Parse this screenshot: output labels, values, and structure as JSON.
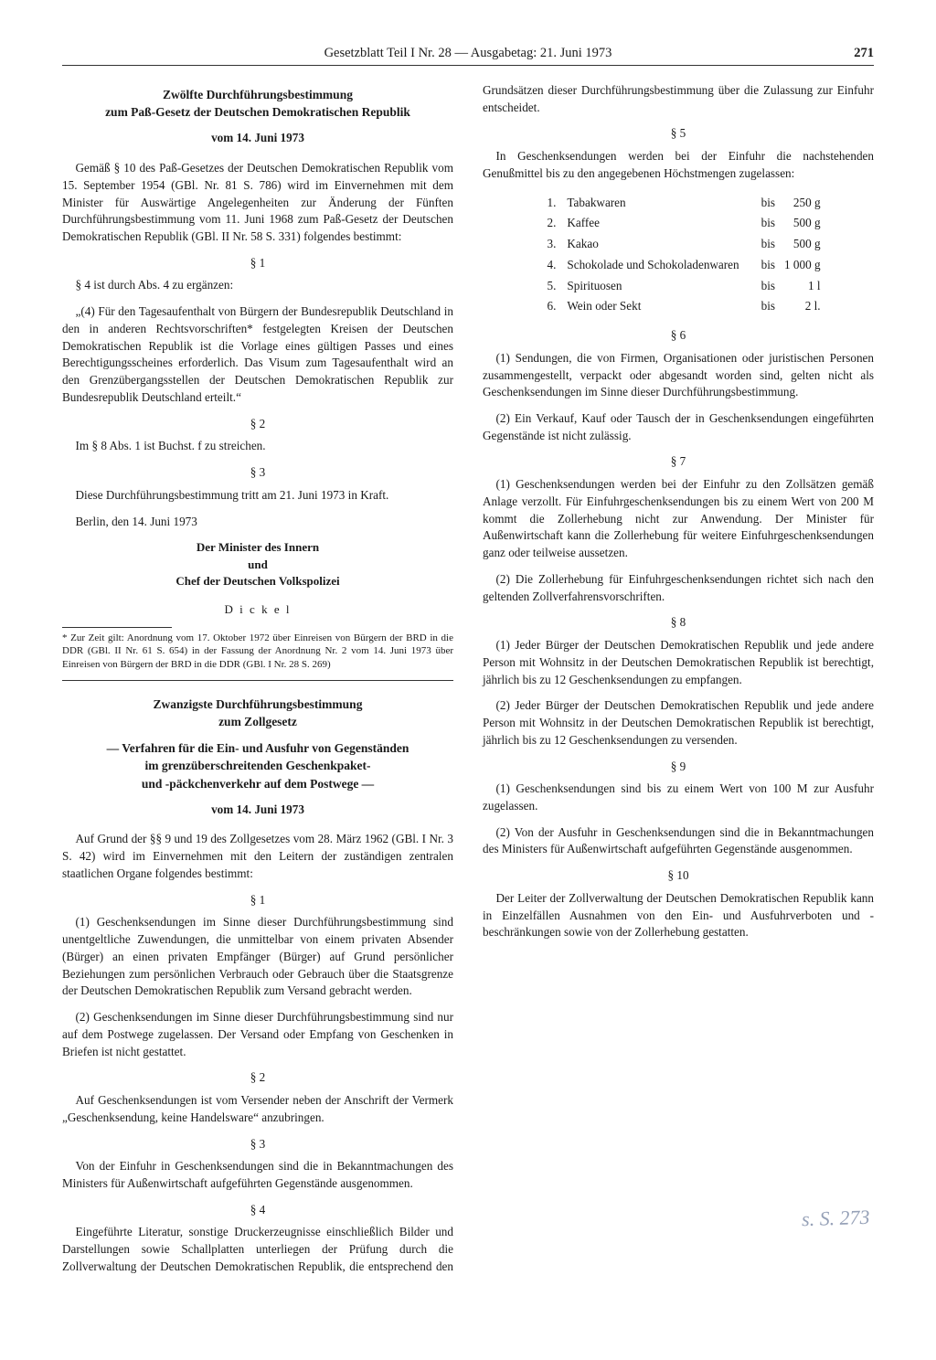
{
  "header": {
    "center": "Gesetzblatt Teil I Nr. 28 — Ausgabetag: 21. Juni 1973",
    "page": "271"
  },
  "law1": {
    "title_l1": "Zwölfte Durchführungsbestimmung",
    "title_l2": "zum Paß-Gesetz der Deutschen Demokratischen Republik",
    "date": "vom 14. Juni 1973",
    "preamble": "Gemäß § 10 des Paß-Gesetzes der Deutschen Demokratischen Republik vom 15. September 1954 (GBl. Nr. 81 S. 786) wird im Einvernehmen mit dem Minister für Auswärtige Angelegenheiten zur Änderung der Fünften Durchführungsbestimmung vom 11. Juni 1968 zum Paß-Gesetz der Deutschen Demokratischen Republik (GBl. II Nr. 58 S. 331) folgendes bestimmt:",
    "s1_head": "§ 1",
    "s1_intro": "§ 4 ist durch Abs. 4 zu ergänzen:",
    "s1_quote": "„(4) Für den Tagesaufenthalt von Bürgern der Bundesrepublik Deutschland in den in anderen Rechtsvorschriften* festgelegten Kreisen der Deutschen Demokratischen Republik ist die Vorlage eines gültigen Passes und eines Berechtigungsscheines erforderlich. Das Visum zum Tagesaufenthalt wird an den Grenzübergangsstellen der Deutschen Demokratischen Republik zur Bundesrepublik Deutschland erteilt.“",
    "s2_head": "§ 2",
    "s2_body": "Im § 8 Abs. 1 ist Buchst. f zu streichen.",
    "s3_head": "§ 3",
    "s3_body": "Diese Durchführungsbestimmung tritt am 21. Juni 1973 in Kraft.",
    "place_date": "Berlin, den 14. Juni 1973",
    "sig_l1": "Der Minister des Innern",
    "sig_l2": "und",
    "sig_l3": "Chef der Deutschen Volkspolizei",
    "sig_name": "D i c k e l",
    "footnote": "* Zur Zeit gilt: Anordnung vom 17. Oktober 1972 über Einreisen von Bürgern der BRD in die DDR (GBl. II Nr. 61 S. 654) in der Fassung der Anordnung Nr. 2 vom 14. Juni 1973 über Einreisen von Bürgern der BRD in die DDR (GBl. I Nr. 28 S. 269)"
  },
  "law2": {
    "title_l1": "Zwanzigste Durchführungsbestimmung",
    "title_l2": "zum Zollgesetz",
    "subtitle_l1": "— Verfahren für die Ein- und Ausfuhr von Gegenständen",
    "subtitle_l2": "im grenzüberschreitenden Geschenkpaket-",
    "subtitle_l3": "und -päckchenverkehr auf dem Postwege —",
    "date": "vom 14. Juni 1973",
    "preamble": "Auf Grund der §§ 9 und 19 des Zollgesetzes vom 28. März 1962 (GBl. I Nr. 3 S. 42) wird im Einvernehmen mit den Leitern der zuständigen zentralen staatlichen Organe folgendes bestimmt:",
    "s1_head": "§ 1",
    "s1_p1": "(1) Geschenksendungen im Sinne dieser Durchführungsbestimmung sind unentgeltliche Zuwendungen, die unmittelbar von einem privaten Absender (Bürger) an einen privaten Empfänger (Bürger) auf Grund persönlicher Beziehungen zum persönlichen Verbrauch oder Gebrauch über die Staatsgrenze der Deutschen Demokratischen Republik zum Versand gebracht werden.",
    "s1_p2": "(2) Geschenksendungen im Sinne dieser Durchführungsbestimmung sind nur auf dem Postwege zugelassen. Der Versand oder Empfang von Geschenken in Briefen ist nicht gestattet.",
    "s2_head": "§ 2",
    "s2_body": "Auf Geschenksendungen ist vom Versender neben der Anschrift der Vermerk „Geschenksendung, keine Handelsware“ anzubringen.",
    "s3_head": "§ 3",
    "s3_body": "Von der Einfuhr in Geschenksendungen sind die in Bekanntmachungen des Ministers für Außenwirtschaft aufgeführten Gegenstände ausgenommen.",
    "s4_head": "§ 4",
    "s4_body": "Eingeführte Literatur, sonstige Druckerzeugnisse einschließlich Bilder und Darstellungen sowie Schallplatten unterliegen der Prüfung durch die Zollverwaltung der Deutschen Demokratischen Republik, die entsprechend den Grundsätzen dieser Durchführungsbestimmung über die Zulassung zur Einfuhr entscheidet.",
    "s5_head": "§ 5",
    "s5_intro": "In Geschenksendungen werden bei der Einfuhr die nachstehenden Genußmittel bis zu den angegebenen Höchstmengen zugelassen:",
    "s5_items": [
      {
        "n": "1.",
        "label": "Tabakwaren",
        "bis": "bis",
        "amt": "250 g"
      },
      {
        "n": "2.",
        "label": "Kaffee",
        "bis": "bis",
        "amt": "500 g"
      },
      {
        "n": "3.",
        "label": "Kakao",
        "bis": "bis",
        "amt": "500 g"
      },
      {
        "n": "4.",
        "label": "Schokolade und Schokoladenwaren",
        "bis": "bis",
        "amt": "1 000 g"
      },
      {
        "n": "5.",
        "label": "Spirituosen",
        "bis": "bis",
        "amt": "1 l"
      },
      {
        "n": "6.",
        "label": "Wein oder Sekt",
        "bis": "bis",
        "amt": "2 l."
      }
    ],
    "s6_head": "§ 6",
    "s6_p1": "(1) Sendungen, die von Firmen, Organisationen oder juristischen Personen zusammengestellt, verpackt oder abgesandt worden sind, gelten nicht als Geschenksendungen im Sinne dieser Durchführungsbestimmung.",
    "s6_p2": "(2) Ein Verkauf, Kauf oder Tausch der in Geschenksendungen eingeführten Gegenstände ist nicht zulässig.",
    "s7_head": "§ 7",
    "s7_p1": "(1) Geschenksendungen werden bei der Einfuhr zu den Zollsätzen gemäß Anlage verzollt. Für Einfuhrgeschenksendungen bis zu einem Wert von 200 M kommt die Zollerhebung nicht zur Anwendung. Der Minister für Außenwirtschaft kann die Zollerhebung für weitere Einfuhrgeschenksendungen ganz oder teilweise aussetzen.",
    "s7_p2": "(2) Die Zollerhebung für Einfuhrgeschenksendungen richtet sich nach den geltenden Zollverfahrensvorschriften.",
    "s8_head": "§ 8",
    "s8_p1": "(1) Jeder Bürger der Deutschen Demokratischen Republik und jede andere Person mit Wohnsitz in der Deutschen Demokratischen Republik ist berechtigt, jährlich bis zu 12 Geschenksendungen zu empfangen.",
    "s8_p2": "(2) Jeder Bürger der Deutschen Demokratischen Republik und jede andere Person mit Wohnsitz in der Deutschen Demokratischen Republik ist berechtigt, jährlich bis zu 12 Geschenksendungen zu versenden.",
    "s9_head": "§ 9",
    "s9_p1": "(1) Geschenksendungen sind bis zu einem Wert von 100 M zur Ausfuhr zugelassen.",
    "s9_p2": "(2) Von der Ausfuhr in Geschenksendungen sind die in Bekanntmachungen des Ministers für Außenwirtschaft aufgeführten Gegenstände ausgenommen.",
    "s10_head": "§ 10",
    "s10_body": "Der Leiter der Zollverwaltung der Deutschen Demokratischen Republik kann in Einzelfällen Ausnahmen von den Ein- und Ausfuhrverboten und -beschränkungen sowie von der Zollerhebung gestatten."
  },
  "handwriting": "s. S. 273"
}
